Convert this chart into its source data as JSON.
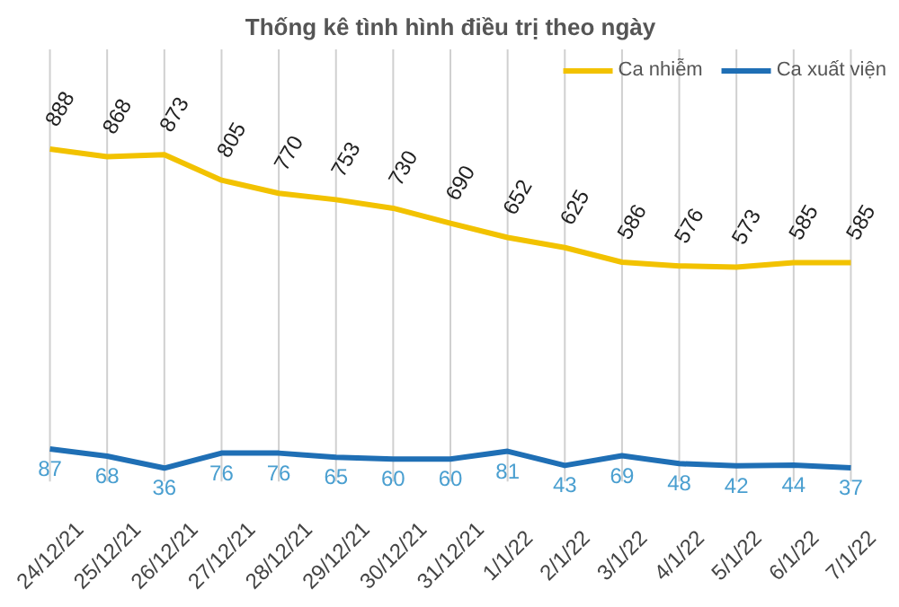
{
  "chart_data": {
    "type": "line",
    "title": "Thống kê tình hình điều trị theo ngày",
    "categories": [
      "24/12/21",
      "25/12/21",
      "26/12/21",
      "27/12/21",
      "28/12/21",
      "29/12/21",
      "30/12/21",
      "31/12/21",
      "1/1/22",
      "2/1/22",
      "3/1/22",
      "4/1/22",
      "5/1/22",
      "6/1/22",
      "7/1/22"
    ],
    "series": [
      {
        "name": "Ca nhiễm",
        "color": "#f2c200",
        "values": [
          888,
          868,
          873,
          805,
          770,
          753,
          730,
          690,
          652,
          625,
          586,
          576,
          573,
          585,
          585
        ]
      },
      {
        "name": "Ca xuất viện",
        "color": "#1f6fb5",
        "values": [
          87,
          68,
          36,
          76,
          76,
          65,
          60,
          60,
          81,
          43,
          69,
          48,
          42,
          44,
          37
        ]
      }
    ],
    "data_labels": true,
    "grid": "x",
    "legend": "top right",
    "tick_labels": "x",
    "marker": "none",
    "line_style": "solid"
  }
}
